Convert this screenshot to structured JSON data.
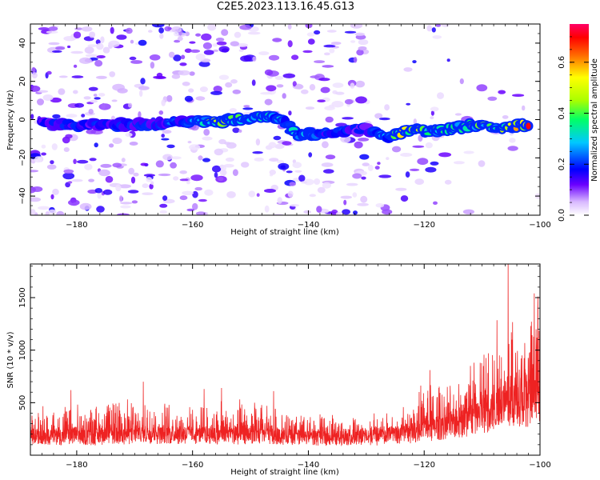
{
  "title": "C2E5.2023.113.16.45.G13",
  "chart_data": [
    {
      "type": "heatmap",
      "xlabel": "Height of straight line (km)",
      "ylabel": "Frequency (Hz)",
      "xlim": [
        -188,
        -100
      ],
      "ylim": [
        -50,
        50
      ],
      "x_ticks": [
        -180,
        -160,
        -140,
        -120,
        -100
      ],
      "y_ticks": [
        -40,
        -20,
        0,
        20,
        40
      ],
      "colorbar": {
        "label": "Normalized spectral amplitude",
        "range": [
          0,
          0.75
        ],
        "ticks": [
          0.0,
          0.2,
          0.4,
          0.6
        ],
        "colormap": [
          "#ffffff",
          "#6a00ff",
          "#0000ff",
          "#00ffff",
          "#00ff00",
          "#ffff00",
          "#ff0000",
          "#ff0066"
        ]
      },
      "ridge": [
        {
          "x": -186,
          "freq": -2,
          "amp": 0.18
        },
        {
          "x": -176,
          "freq": -3,
          "amp": 0.2
        },
        {
          "x": -165,
          "freq": -2,
          "amp": 0.22
        },
        {
          "x": -160,
          "freq": -1,
          "amp": 0.25
        },
        {
          "x": -155,
          "freq": -1,
          "amp": 0.55
        },
        {
          "x": -150,
          "freq": 1,
          "amp": 0.35
        },
        {
          "x": -145,
          "freq": 1,
          "amp": 0.3
        },
        {
          "x": -142,
          "freq": -8,
          "amp": 0.3
        },
        {
          "x": -137,
          "freq": -7,
          "amp": 0.22
        },
        {
          "x": -130,
          "freq": -5,
          "amp": 0.18
        },
        {
          "x": -126,
          "freq": -9,
          "amp": 0.32
        },
        {
          "x": -123,
          "freq": -6,
          "amp": 0.65
        },
        {
          "x": -118,
          "freq": -6,
          "amp": 0.38
        },
        {
          "x": -112,
          "freq": -3,
          "amp": 0.42
        },
        {
          "x": -107,
          "freq": -4,
          "amp": 0.4
        },
        {
          "x": -102,
          "freq": -3,
          "amp": 0.72
        }
      ]
    },
    {
      "type": "line",
      "xlabel": "Height of straight line (km)",
      "ylabel": "SNR (10 * v/v)",
      "xlim": [
        -188,
        -100
      ],
      "ylim": [
        0,
        1820
      ],
      "x_ticks": [
        -180,
        -160,
        -140,
        -120,
        -100
      ],
      "y_ticks": [
        500,
        1000,
        1500
      ],
      "color": "#ee2222",
      "envelope": [
        {
          "x": -188,
          "base": 170,
          "peak": 380
        },
        {
          "x": -178,
          "base": 170,
          "peak": 450
        },
        {
          "x": -168,
          "base": 190,
          "peak": 520
        },
        {
          "x": -160,
          "base": 190,
          "peak": 400
        },
        {
          "x": -150,
          "base": 180,
          "peak": 500
        },
        {
          "x": -140,
          "base": 160,
          "peak": 360
        },
        {
          "x": -130,
          "base": 160,
          "peak": 330
        },
        {
          "x": -125,
          "base": 180,
          "peak": 380
        },
        {
          "x": -120,
          "base": 230,
          "peak": 650
        },
        {
          "x": -115,
          "base": 280,
          "peak": 750
        },
        {
          "x": -110,
          "base": 360,
          "peak": 1000
        },
        {
          "x": -106,
          "base": 450,
          "peak": 1300
        },
        {
          "x": -103,
          "base": 480,
          "peak": 1100
        },
        {
          "x": -100,
          "base": 500,
          "peak": 1550
        }
      ],
      "notable_peaks": [
        {
          "x": -181,
          "y": 620
        },
        {
          "x": -168.5,
          "y": 700
        },
        {
          "x": -158,
          "y": 630
        },
        {
          "x": -155,
          "y": 640
        },
        {
          "x": -146,
          "y": 610
        },
        {
          "x": -119,
          "y": 810
        },
        {
          "x": -112,
          "y": 850
        },
        {
          "x": -107,
          "y": 950
        },
        {
          "x": -105.5,
          "y": 1820
        },
        {
          "x": -101,
          "y": 1540
        }
      ]
    }
  ]
}
